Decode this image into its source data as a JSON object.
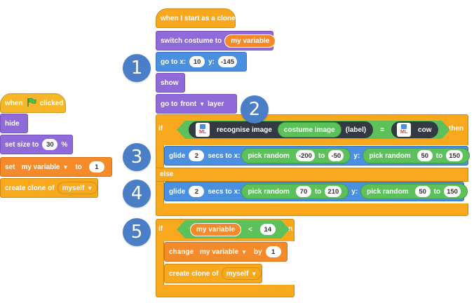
{
  "left_script": {
    "when_clicked": {
      "when": "when",
      "clicked": "clicked"
    },
    "hide": "hide",
    "set_size": {
      "label": "set size to",
      "value": "30",
      "unit": "%"
    },
    "set_var": {
      "set": "set",
      "variable": "my variable",
      "to": "to",
      "value": "1"
    },
    "create_clone": {
      "label": "create clone of",
      "target": "myself"
    }
  },
  "right_script": {
    "hat": "when I start as a clone",
    "switch_costume": {
      "label": "switch costume to",
      "value": "my variable"
    },
    "goto_xy": {
      "label": "go to x:",
      "x": "10",
      "y_label": "y:",
      "y": "-145"
    },
    "show": "show",
    "goto_layer": {
      "label": "go to",
      "value": "front",
      "suffix": "layer"
    },
    "if1": {
      "if": "if",
      "then": "then",
      "else": "else",
      "recognise": {
        "label": "recognise image",
        "input": "costume image",
        "suffix": "(label)"
      },
      "eq": "=",
      "cow": "cow",
      "ml_icon": {
        "line1": "M",
        "line2": "L"
      },
      "glide1": {
        "glide": "glide",
        "secs": "2",
        "secs_label": "secs to x:",
        "pick": "pick random",
        "x_min": "-200",
        "to": "to",
        "x_max": "-50",
        "y_label": "y:",
        "y_min": "50",
        "y_max": "150"
      },
      "glide2": {
        "glide": "glide",
        "secs": "2",
        "secs_label": "secs to x:",
        "pick": "pick random",
        "x_min": "70",
        "to": "to",
        "x_max": "210",
        "y_label": "y:",
        "y_min": "50",
        "y_max": "150"
      }
    },
    "if2": {
      "if": "if",
      "then": "then",
      "var": "my variable",
      "lt": "<",
      "value": "14",
      "change": {
        "label": "change",
        "variable": "my variable",
        "by": "by",
        "value": "1"
      },
      "clone": {
        "label": "create clone of",
        "target": "myself"
      }
    }
  },
  "badges": [
    "1",
    "2",
    "3",
    "4",
    "5"
  ],
  "colors": {
    "events": "#f7b627",
    "looks": "#8f6ad8",
    "motion": "#4a8fe0",
    "control": "#f8a81d",
    "variables": "#f58a2a",
    "operators": "#5cc15b",
    "badge": "#4a7fc7"
  }
}
